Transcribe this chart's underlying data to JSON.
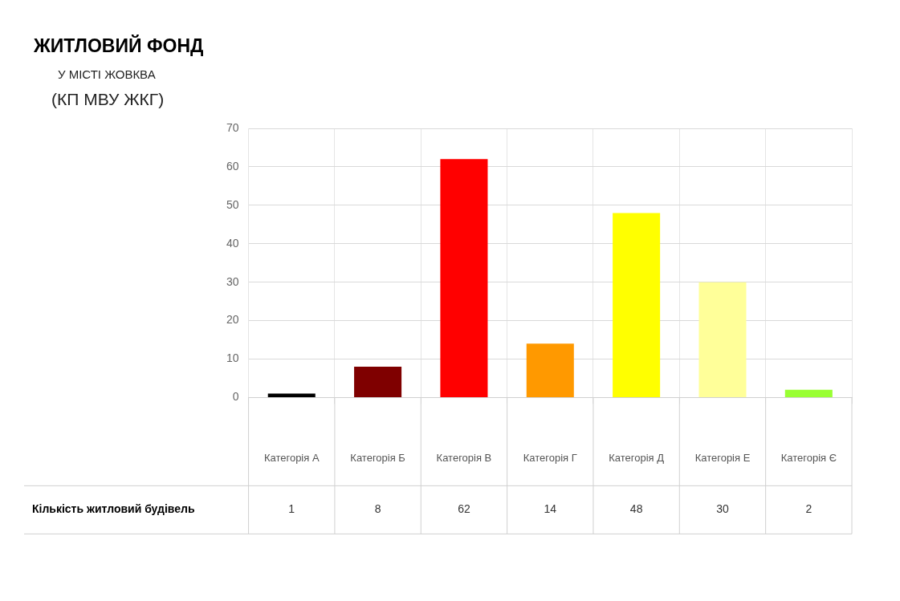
{
  "chart_data": {
    "type": "bar",
    "title": "ЖИТЛОВИЙ ФОНД",
    "subtitle": "У МІСТІ ЖОВКВА",
    "annotations": [
      "(КП МВУ ЖКГ)"
    ],
    "categories": [
      "Категорія А",
      "Категорія Б",
      "Категорія В",
      "Категорія Г",
      "Категорія Д",
      "Категорія Е",
      "Категорія Є"
    ],
    "series": [
      {
        "name": "Кількість житловий будівель",
        "colors": [
          "#000000",
          "#7f0000",
          "#ff0000",
          "#ff9900",
          "#ffff00",
          "#ffff99",
          "#99ff33"
        ],
        "values": [
          1,
          8,
          62,
          14,
          48,
          30,
          2
        ]
      }
    ],
    "ylim": [
      0,
      70
    ],
    "yticks": [
      0,
      10,
      20,
      30,
      40,
      50,
      60,
      70
    ],
    "grid": true,
    "legend": false,
    "data_labels": true
  }
}
